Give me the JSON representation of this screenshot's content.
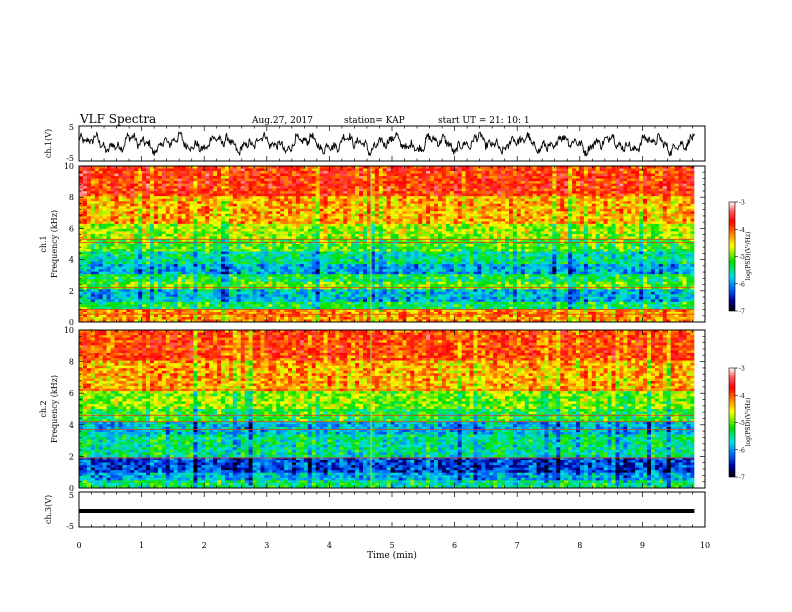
{
  "header": {
    "title": "VLF Spectra",
    "date": "Aug.27, 2017",
    "station": "station= KAP",
    "start": "start  UT  =   21: 10: 1"
  },
  "chart_data": [
    {
      "type": "line",
      "panel": "ch1-waveform",
      "ylabel": "ch.1(V)",
      "ylim": [
        -5,
        5
      ],
      "y_tick_labels": [
        "5",
        "-5"
      ],
      "xlim": [
        0,
        9.83
      ],
      "trace": "noisy waveform oscillating roughly between -3.5 and 3 V",
      "grid": false
    },
    {
      "type": "heatmap",
      "panel": "ch1-spectrogram",
      "ylabel": "ch.1\nFrequency  (kHz)",
      "ylim": [
        0,
        10
      ],
      "y_tick_labels": [
        "0",
        "2",
        "4",
        "6",
        "8",
        "10"
      ],
      "xlim": [
        0,
        9.83
      ],
      "colorbar": {
        "label": "log(PSD)(V²/Hz)",
        "range": [
          -7,
          -3
        ],
        "tick_labels": [
          "-3",
          "-4",
          "-5",
          "-6",
          "-7"
        ]
      },
      "bands_kHz": [
        {
          "from": 0,
          "to": 0.8,
          "level": -4.2
        },
        {
          "from": 0.8,
          "to": 1.3,
          "level": -5.3
        },
        {
          "from": 1.3,
          "to": 2.1,
          "level": -5.8
        },
        {
          "from": 2.1,
          "to": 2.6,
          "level": -5.0
        },
        {
          "from": 2.6,
          "to": 3.1,
          "level": -5.3
        },
        {
          "from": 3.1,
          "to": 3.7,
          "level": -5.9
        },
        {
          "from": 3.7,
          "to": 4.5,
          "level": -5.5
        },
        {
          "from": 4.5,
          "to": 5.3,
          "level": -5.1
        },
        {
          "from": 5.3,
          "to": 6.3,
          "level": -4.8
        },
        {
          "from": 6.3,
          "to": 8.0,
          "level": -4.3
        },
        {
          "from": 8.0,
          "to": 10.0,
          "level": -3.8
        }
      ],
      "lines_kHz": [
        0.5,
        0.8,
        2.2,
        5.1,
        5.3
      ]
    },
    {
      "type": "heatmap",
      "panel": "ch2-spectrogram",
      "ylabel": "ch.2\nFrequency  (kHz)",
      "ylim": [
        0,
        10
      ],
      "y_tick_labels": [
        "0",
        "2",
        "4",
        "6",
        "8",
        "10"
      ],
      "xlim": [
        0,
        9.83
      ],
      "colorbar": {
        "label": "log(PSD)(V²/Hz)",
        "range": [
          -7,
          -3
        ],
        "tick_labels": [
          "-3",
          "-4",
          "-5",
          "-6",
          "-7"
        ]
      },
      "bands_kHz": [
        {
          "from": 0,
          "to": 0.5,
          "level": -5.4
        },
        {
          "from": 0.5,
          "to": 1.0,
          "level": -5.9
        },
        {
          "from": 1.0,
          "to": 1.9,
          "level": -6.3
        },
        {
          "from": 1.9,
          "to": 2.6,
          "level": -5.5
        },
        {
          "from": 2.6,
          "to": 3.4,
          "level": -5.5
        },
        {
          "from": 3.4,
          "to": 4.2,
          "level": -5.8
        },
        {
          "from": 4.2,
          "to": 5.0,
          "level": -5.2
        },
        {
          "from": 5.0,
          "to": 6.2,
          "level": -4.9
        },
        {
          "from": 6.2,
          "to": 8.0,
          "level": -4.3
        },
        {
          "from": 8.0,
          "to": 10.0,
          "level": -3.9
        }
      ],
      "lines_kHz": [
        1.9,
        3.7,
        4.2,
        4.6,
        6.2
      ]
    },
    {
      "type": "line",
      "panel": "ch3-waveform",
      "ylabel": "ch.3(V)",
      "ylim": [
        -5,
        5
      ],
      "y_tick_labels": [
        "5",
        "-5"
      ],
      "xlim": [
        0,
        9.83
      ],
      "trace": "flat thick line near -0.5 V",
      "xlabel": "Time  (min)",
      "x_tick_labels": [
        "0",
        "1",
        "2",
        "3",
        "4",
        "5",
        "6",
        "7",
        "8",
        "9",
        "10"
      ],
      "grid": false
    }
  ]
}
